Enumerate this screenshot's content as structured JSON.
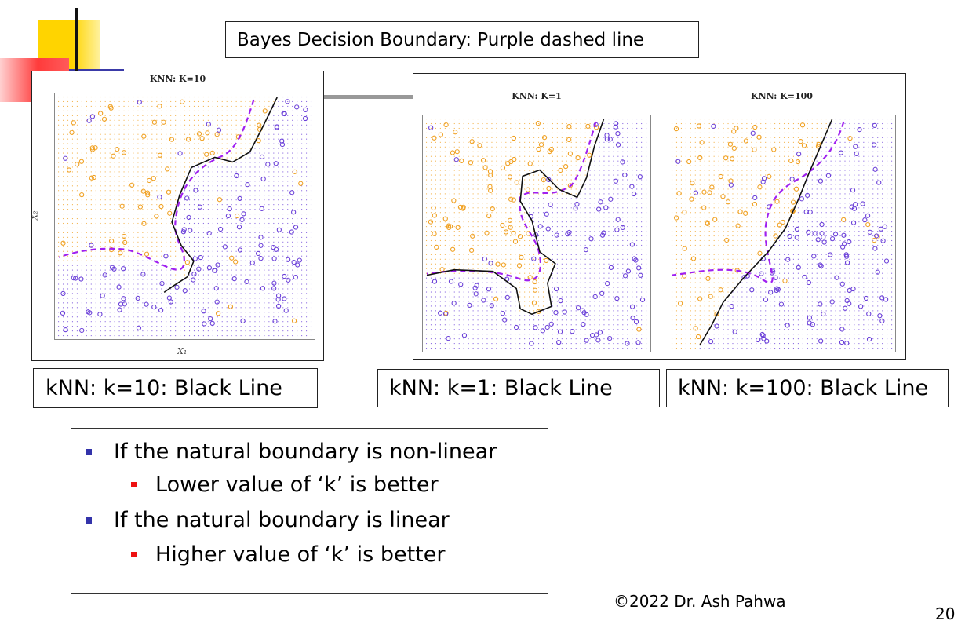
{
  "slide": {
    "header_label": "Bayes Decision Boundary: Purple dashed line",
    "page_number": "20",
    "copyright": "©2022 Dr. Ash Pahwa"
  },
  "panels": {
    "k10": {
      "title": "KNN: K=10",
      "xlabel": "X₁",
      "ylabel": "X₂",
      "caption": "kNN: k=10: Black Line"
    },
    "k1": {
      "title": "KNN: K=1",
      "caption": "kNN: k=1: Black Line"
    },
    "k100": {
      "title": "KNN: K=100",
      "caption": "kNN: k=100: Black Line"
    }
  },
  "bullets": [
    {
      "text": "If the natural boundary is non-linear",
      "sub": "Lower value of ‘k’ is better"
    },
    {
      "text": "If the natural boundary is linear",
      "sub": "Higher value of ‘k’ is better"
    }
  ],
  "colors": {
    "orange": "#f0a020",
    "purple": "#6a3fd8",
    "bayes": "#a020f0",
    "knn": "#111111",
    "deco_yellow": "#ffd400",
    "deco_red": "#ff3b3b",
    "deco_blue": "#3a3aa8",
    "bullet_blue": "#3333aa",
    "bullet_red": "#ee1111"
  }
}
